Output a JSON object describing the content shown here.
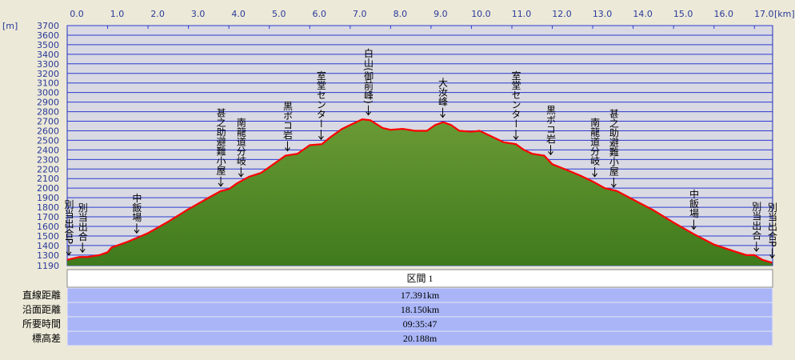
{
  "chart_data": {
    "type": "line",
    "x_unit": "[km]",
    "y_unit": "[m]",
    "x": [
      0.0,
      0.3,
      0.5,
      0.8,
      1.0,
      1.1,
      1.5,
      2.0,
      2.5,
      3.0,
      3.5,
      3.8,
      4.0,
      4.2,
      4.5,
      4.8,
      5.0,
      5.2,
      5.4,
      5.7,
      5.9,
      6.0,
      6.3,
      6.5,
      6.8,
      7.0,
      7.3,
      7.5,
      7.8,
      8.0,
      8.3,
      8.6,
      8.9,
      9.1,
      9.3,
      9.5,
      9.7,
      10.0,
      10.2,
      10.5,
      10.8,
      11.1,
      11.3,
      11.5,
      11.8,
      12.0,
      12.3,
      12.7,
      13.0,
      13.3,
      13.6,
      14.0,
      14.5,
      15.0,
      15.5,
      16.0,
      16.5,
      16.8,
      17.0,
      17.2,
      17.44
    ],
    "values": [
      1250,
      1280,
      1280,
      1300,
      1330,
      1380,
      1440,
      1530,
      1650,
      1780,
      1900,
      1970,
      1990,
      2050,
      2120,
      2160,
      2220,
      2280,
      2340,
      2360,
      2420,
      2450,
      2460,
      2530,
      2620,
      2660,
      2720,
      2710,
      2630,
      2610,
      2620,
      2600,
      2600,
      2660,
      2690,
      2660,
      2600,
      2590,
      2600,
      2540,
      2480,
      2460,
      2400,
      2360,
      2340,
      2250,
      2200,
      2130,
      2070,
      2000,
      1970,
      1880,
      1770,
      1640,
      1520,
      1410,
      1340,
      1300,
      1300,
      1250,
      1220
    ],
    "color": "#ff0000",
    "fill": "#5a8a2a",
    "xlim": [
      0,
      17.45
    ],
    "ylim": [
      1190,
      3700
    ],
    "xticks": [
      {
        "value": 0,
        "label": "0.0"
      },
      {
        "value": 1,
        "label": "1.0"
      },
      {
        "value": 2,
        "label": "2.0"
      },
      {
        "value": 3,
        "label": "3.0"
      },
      {
        "value": 4,
        "label": "4.0"
      },
      {
        "value": 5,
        "label": "5.0"
      },
      {
        "value": 6,
        "label": "6.0"
      },
      {
        "value": 7,
        "label": "7.0"
      },
      {
        "value": 8,
        "label": "8.0"
      },
      {
        "value": 9,
        "label": "9.0"
      },
      {
        "value": 10,
        "label": "10.0"
      },
      {
        "value": 11,
        "label": "11.0"
      },
      {
        "value": 12,
        "label": "12.0"
      },
      {
        "value": 13,
        "label": "13.0"
      },
      {
        "value": 14,
        "label": "14.0"
      },
      {
        "value": 15,
        "label": "15.0"
      },
      {
        "value": 16,
        "label": "16.0"
      },
      {
        "value": 17,
        "label": "17.0"
      }
    ],
    "yticks": [
      1190,
      1300,
      1400,
      1500,
      1600,
      1700,
      1800,
      1900,
      2000,
      2100,
      2200,
      2300,
      2400,
      2500,
      2600,
      2700,
      2800,
      2900,
      3000,
      3100,
      3200,
      3300,
      3400,
      3500,
      3600,
      3700
    ],
    "grid": true,
    "annotations": [
      {
        "text": "別当出合P",
        "x": 0.04,
        "y": 1250
      },
      {
        "text": "別当出合",
        "x": 0.38,
        "y": 1280
      },
      {
        "text": "中飯場",
        "x": 1.72,
        "y": 1480
      },
      {
        "text": "甚之助避難小屋",
        "x": 3.8,
        "y": 1970
      },
      {
        "text": "南龍道分岐",
        "x": 4.3,
        "y": 2070
      },
      {
        "text": "黒ボコ岩",
        "x": 5.45,
        "y": 2340
      },
      {
        "text": "室堂センター",
        "x": 6.28,
        "y": 2460
      },
      {
        "text": "白山(御前峰)",
        "x": 7.45,
        "y": 2715
      },
      {
        "text": "大汝峰",
        "x": 9.29,
        "y": 2690
      },
      {
        "text": "室堂センター",
        "x": 11.1,
        "y": 2460
      },
      {
        "text": "黒ボコ岩",
        "x": 11.96,
        "y": 2300
      },
      {
        "text": "南龍道分岐",
        "x": 13.05,
        "y": 2070
      },
      {
        "text": "甚之助避難小屋",
        "x": 13.52,
        "y": 1960
      },
      {
        "text": "中飯場",
        "x": 15.5,
        "y": 1520
      },
      {
        "text": "別当出合",
        "x": 17.05,
        "y": 1290
      },
      {
        "text": "別当出合P",
        "x": 17.44,
        "y": 1220
      }
    ]
  },
  "table": {
    "header": "区間 1",
    "rows": [
      [
        "直線距離",
        "17.391km"
      ],
      [
        "沿面距離",
        "18.150km"
      ],
      [
        "所要時間",
        "09:35:47"
      ],
      [
        "標高差",
        "20.188m"
      ]
    ]
  }
}
